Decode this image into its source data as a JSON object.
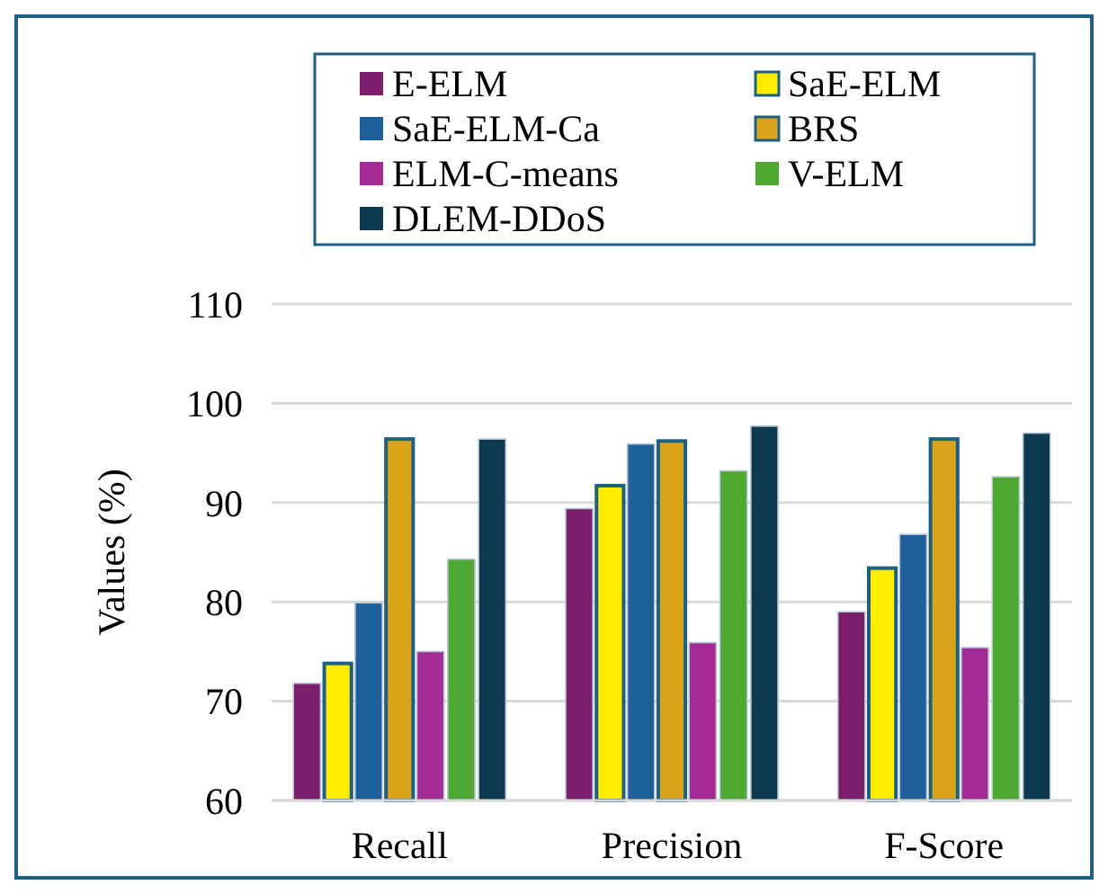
{
  "chart_data": {
    "type": "bar",
    "ylabel": "Values (%)",
    "categories": [
      "Recall",
      "Precision",
      "F-Score"
    ],
    "series": [
      {
        "name": "E-ELM",
        "color": "#7b1e6b",
        "values": [
          71.8,
          89.4,
          79.0
        ]
      },
      {
        "name": "SaE-ELM",
        "color": "#ffed00",
        "values": [
          73.8,
          91.7,
          83.4
        ]
      },
      {
        "name": "SaE-ELM-Ca",
        "color": "#1f5f9b",
        "values": [
          79.9,
          95.9,
          86.8
        ]
      },
      {
        "name": "BRS",
        "color": "#d9a31a",
        "values": [
          96.4,
          96.2,
          96.4
        ]
      },
      {
        "name": "ELM-C-means",
        "color": "#a32b93",
        "values": [
          75.0,
          75.9,
          75.4
        ]
      },
      {
        "name": "V-ELM",
        "color": "#4fa831",
        "values": [
          84.3,
          93.2,
          92.6
        ]
      },
      {
        "name": "DLEM-DDoS",
        "color": "#0e3a4f",
        "values": [
          96.4,
          97.7,
          97.0
        ]
      }
    ],
    "ylim": [
      60,
      110
    ],
    "yticks": [
      60,
      70,
      80,
      90,
      100,
      110
    ],
    "grid": "y",
    "legend": "top"
  }
}
